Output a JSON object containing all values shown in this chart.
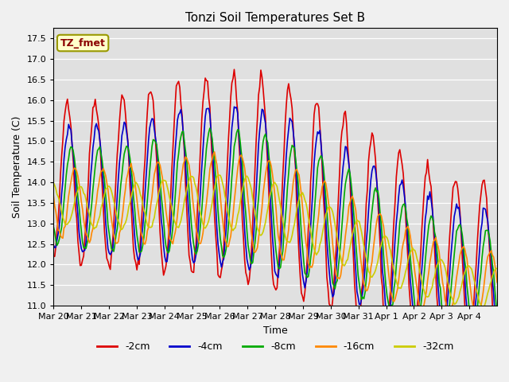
{
  "title": "Tonzi Soil Temperatures Set B",
  "xlabel": "Time",
  "ylabel": "Soil Temperature (C)",
  "ylim": [
    11.0,
    17.75
  ],
  "yticks": [
    11.0,
    11.5,
    12.0,
    12.5,
    13.0,
    13.5,
    14.0,
    14.5,
    15.0,
    15.5,
    16.0,
    16.5,
    17.0,
    17.5
  ],
  "date_labels": [
    "Mar 20",
    "Mar 21",
    "Mar 22",
    "Mar 23",
    "Mar 24",
    "Mar 25",
    "Mar 26",
    "Mar 27",
    "Mar 28",
    "Mar 29",
    "Mar 30",
    "Mar 31",
    "Apr 1",
    "Apr 2",
    "Apr 3",
    "Apr 4"
  ],
  "colors": {
    "-2cm": "#dd0000",
    "-4cm": "#0000cc",
    "-8cm": "#00aa00",
    "-16cm": "#ff8800",
    "-32cm": "#cccc00"
  },
  "legend_label": "TZ_fmet",
  "bg_color": "#e0e0e0",
  "fig_color": "#f0f0f0",
  "n_points": 384,
  "days": 16
}
